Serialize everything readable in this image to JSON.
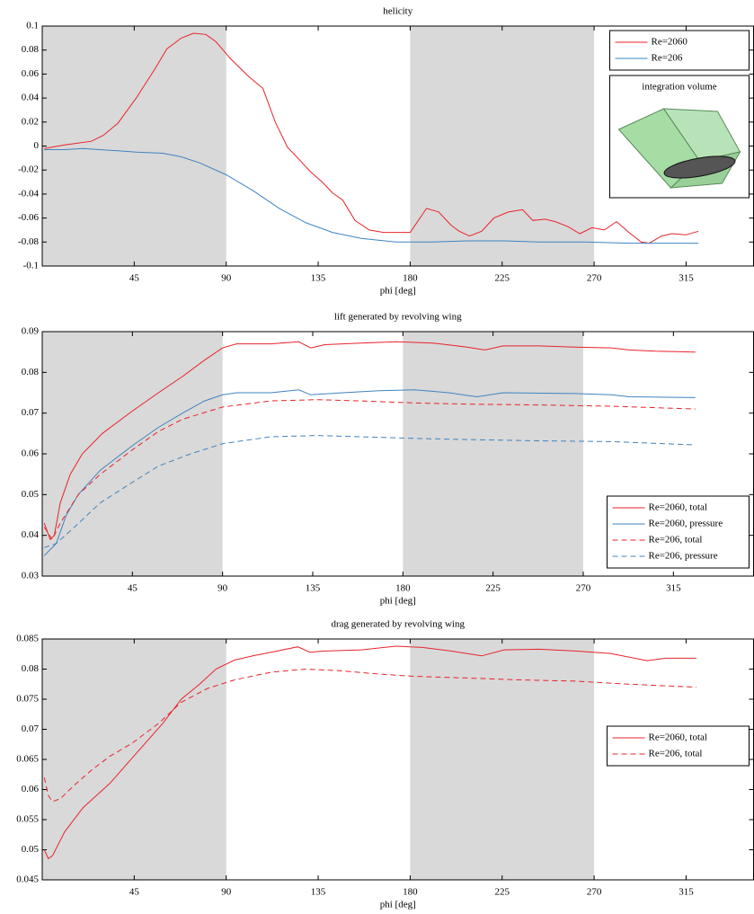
{
  "chart_data": [
    {
      "type": "line",
      "title": "helicity",
      "xlabel": "phi [deg]",
      "xlim": [
        0,
        348
      ],
      "xticks": [
        45,
        90,
        135,
        180,
        225,
        270,
        315
      ],
      "ylim": [
        -0.1,
        0.1
      ],
      "yticks": [
        -0.1,
        -0.08,
        -0.06,
        -0.04,
        -0.02,
        0,
        0.02,
        0.04,
        0.06,
        0.08,
        0.1
      ],
      "shaded_regions": [
        [
          0,
          90
        ],
        [
          180,
          270
        ]
      ],
      "shade_color": "#d9d9d9",
      "legend": "upper right",
      "inset_title": "integration volume",
      "series": [
        {
          "name": "Re=2060",
          "color": "#e8232a",
          "linestyle": "solid",
          "x": [
            1,
            11,
            24,
            30,
            37,
            46,
            55,
            61,
            68,
            74,
            80,
            85,
            92,
            101,
            108,
            114,
            120,
            125,
            131,
            137,
            142,
            147,
            153,
            160,
            167,
            173,
            180,
            188,
            194,
            200,
            204,
            209,
            215,
            221,
            228,
            235,
            240,
            246,
            251,
            257,
            263,
            269,
            275,
            281,
            287,
            293,
            297,
            303,
            308,
            315,
            321
          ],
          "values": [
            -0.002,
            0.001,
            0.004,
            0.009,
            0.019,
            0.04,
            0.064,
            0.081,
            0.09,
            0.094,
            0.093,
            0.087,
            0.073,
            0.058,
            0.048,
            0.02,
            -0.001,
            -0.01,
            -0.021,
            -0.03,
            -0.039,
            -0.045,
            -0.062,
            -0.07,
            -0.072,
            -0.072,
            -0.072,
            -0.052,
            -0.055,
            -0.066,
            -0.071,
            -0.075,
            -0.071,
            -0.06,
            -0.055,
            -0.053,
            -0.062,
            -0.061,
            -0.063,
            -0.067,
            -0.073,
            -0.068,
            -0.07,
            -0.063,
            -0.072,
            -0.08,
            -0.081,
            -0.075,
            -0.073,
            -0.074,
            -0.071
          ]
        },
        {
          "name": "Re=206",
          "color": "#3f83c0",
          "linestyle": "solid",
          "x": [
            1,
            11,
            20,
            28,
            37,
            46,
            59,
            68,
            77,
            90,
            103,
            116,
            129,
            142,
            156,
            173,
            191,
            208,
            226,
            243,
            265,
            287,
            321
          ],
          "values": [
            -0.003,
            -0.003,
            -0.002,
            -0.003,
            -0.004,
            -0.005,
            -0.006,
            -0.009,
            -0.014,
            -0.024,
            -0.037,
            -0.052,
            -0.064,
            -0.072,
            -0.077,
            -0.08,
            -0.08,
            -0.079,
            -0.079,
            -0.08,
            -0.08,
            -0.081,
            -0.081
          ]
        }
      ]
    },
    {
      "type": "line",
      "title": "lift generated by revolving wing",
      "xlabel": "phi [deg]",
      "xlim": [
        0,
        355
      ],
      "xticks": [
        45,
        90,
        135,
        180,
        225,
        270,
        315
      ],
      "ylim": [
        0.03,
        0.09
      ],
      "yticks": [
        0.03,
        0.04,
        0.05,
        0.06,
        0.07,
        0.08,
        0.09
      ],
      "shaded_regions": [
        [
          0,
          90
        ],
        [
          180,
          270
        ]
      ],
      "shade_color": "#d9d9d9",
      "legend": "lower right",
      "series": [
        {
          "name": "Re=2060, total",
          "color": "#e8232a",
          "linestyle": "solid",
          "x": [
            1,
            4,
            6,
            9,
            14,
            20,
            30,
            45,
            58,
            70,
            81,
            90,
            97,
            114,
            128,
            134,
            141,
            159,
            177,
            195,
            212,
            221,
            230,
            248,
            266,
            284,
            293,
            306,
            326
          ],
          "values": [
            0.043,
            0.039,
            0.04,
            0.048,
            0.055,
            0.06,
            0.065,
            0.0705,
            0.075,
            0.079,
            0.083,
            0.086,
            0.087,
            0.087,
            0.0875,
            0.086,
            0.0868,
            0.0872,
            0.0875,
            0.0872,
            0.0862,
            0.0855,
            0.0865,
            0.0865,
            0.0862,
            0.086,
            0.0855,
            0.0852,
            0.085
          ]
        },
        {
          "name": "Re=2060, pressure",
          "color": "#3f83c0",
          "linestyle": "solid",
          "x": [
            1,
            7,
            12,
            18,
            29,
            45,
            58,
            70,
            81,
            90,
            97,
            114,
            128,
            134,
            150,
            168,
            186,
            203,
            217,
            230,
            266,
            284,
            293,
            326
          ],
          "values": [
            0.035,
            0.038,
            0.045,
            0.05,
            0.056,
            0.062,
            0.0665,
            0.07,
            0.073,
            0.0745,
            0.075,
            0.075,
            0.0757,
            0.0745,
            0.075,
            0.0755,
            0.0757,
            0.075,
            0.074,
            0.075,
            0.0748,
            0.0745,
            0.074,
            0.0738
          ]
        },
        {
          "name": "Re=206, total",
          "color": "#e8232a",
          "linestyle": "dashed",
          "x": [
            1,
            5,
            9,
            18,
            29,
            45,
            58,
            70,
            90,
            114,
            137,
            159,
            186,
            212,
            248,
            284,
            326
          ],
          "values": [
            0.042,
            0.039,
            0.043,
            0.05,
            0.055,
            0.061,
            0.0655,
            0.0685,
            0.0715,
            0.073,
            0.0733,
            0.073,
            0.0725,
            0.0722,
            0.072,
            0.0717,
            0.071
          ]
        },
        {
          "name": "Re=206, pressure",
          "color": "#3f83c0",
          "linestyle": "dashed",
          "x": [
            1,
            7,
            16,
            29,
            45,
            58,
            74,
            90,
            114,
            137,
            159,
            186,
            212,
            248,
            284,
            326
          ],
          "values": [
            0.037,
            0.038,
            0.042,
            0.048,
            0.053,
            0.057,
            0.06,
            0.0625,
            0.0642,
            0.0645,
            0.0642,
            0.0638,
            0.0635,
            0.0632,
            0.063,
            0.0622
          ]
        }
      ]
    },
    {
      "type": "line",
      "title": "drag generated by revolving wing",
      "xlabel": "phi [deg]",
      "xlim": [
        0,
        348
      ],
      "xticks": [
        45,
        90,
        135,
        180,
        225,
        270,
        315
      ],
      "ylim": [
        0.045,
        0.085
      ],
      "yticks": [
        0.045,
        0.05,
        0.055,
        0.06,
        0.065,
        0.07,
        0.075,
        0.08,
        0.085
      ],
      "shaded_regions": [
        [
          0,
          90
        ],
        [
          180,
          270
        ]
      ],
      "shade_color": "#d9d9d9",
      "legend": "right",
      "series": [
        {
          "name": "Re=2060, total",
          "color": "#e8232a",
          "linestyle": "solid",
          "x": [
            1,
            3,
            5,
            11,
            20,
            33,
            46,
            59,
            68,
            77,
            85,
            94,
            103,
            112,
            125,
            131,
            138,
            156,
            173,
            186,
            200,
            215,
            226,
            243,
            261,
            278,
            287,
            296,
            305,
            320
          ],
          "values": [
            0.05,
            0.0485,
            0.049,
            0.053,
            0.057,
            0.061,
            0.066,
            0.071,
            0.075,
            0.0775,
            0.08,
            0.0815,
            0.0822,
            0.0828,
            0.0837,
            0.0828,
            0.083,
            0.0832,
            0.0838,
            0.0836,
            0.083,
            0.0822,
            0.0832,
            0.0833,
            0.083,
            0.0826,
            0.082,
            0.0814,
            0.0818,
            0.0818
          ]
        },
        {
          "name": "Re=206, total",
          "color": "#e8232a",
          "linestyle": "dashed",
          "x": [
            1,
            3,
            5,
            9,
            15,
            24,
            33,
            44,
            57,
            68,
            81,
            94,
            112,
            129,
            147,
            164,
            182,
            209,
            235,
            261,
            287,
            320
          ],
          "values": [
            0.062,
            0.059,
            0.058,
            0.0585,
            0.0605,
            0.0632,
            0.0655,
            0.0677,
            0.071,
            0.0745,
            0.0768,
            0.0782,
            0.0795,
            0.08,
            0.0797,
            0.0792,
            0.0788,
            0.0785,
            0.0782,
            0.078,
            0.0775,
            0.077
          ]
        }
      ]
    }
  ]
}
